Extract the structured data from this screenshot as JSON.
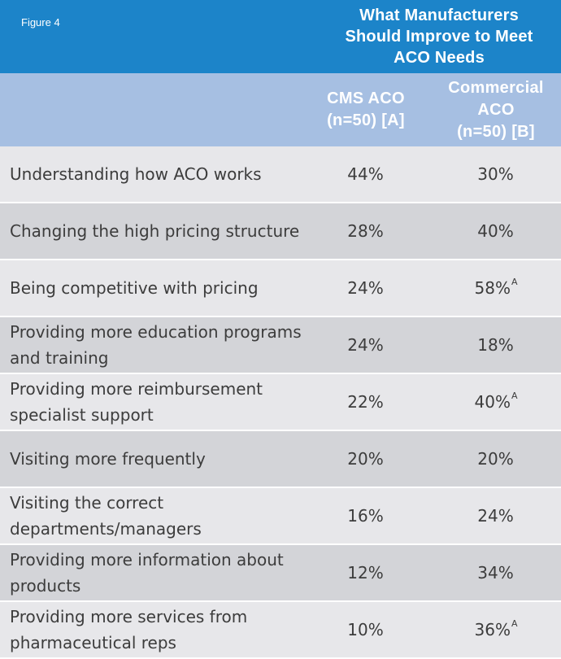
{
  "figure_label": "Figure 4",
  "colors": {
    "title_band": "#1c84c9",
    "header_band": "#a6bfe2",
    "row_light": "#e7e7ea",
    "row_dark": "#d3d4d8",
    "text": "#3c3c3c"
  },
  "chart_data": {
    "type": "table",
    "title": "What Manufacturers Should Improve to Meet ACO Needs",
    "title_lines": [
      "What Manufacturers",
      "Should Improve to Meet",
      "ACO Needs"
    ],
    "columns": [
      {
        "name": "CMS ACO (n=50) [A]",
        "lines": [
          "CMS ACO",
          "(n=50) [A]"
        ]
      },
      {
        "name": "Commercial ACO (n=50) [B]",
        "lines": [
          "Commercial",
          "ACO",
          "(n=50) [B]"
        ]
      }
    ],
    "rows": [
      {
        "label": "Understanding how ACO works",
        "cms": "44%",
        "cms_sup": "",
        "commercial": "30%",
        "commercial_sup": ""
      },
      {
        "label": "Changing the high pricing structure",
        "cms": "28%",
        "cms_sup": "",
        "commercial": "40%",
        "commercial_sup": ""
      },
      {
        "label": "Being competitive with pricing",
        "cms": "24%",
        "cms_sup": "",
        "commercial": "58%",
        "commercial_sup": "A"
      },
      {
        "label": "Providing more education programs and training",
        "cms": "24%",
        "cms_sup": "",
        "commercial": "18%",
        "commercial_sup": ""
      },
      {
        "label": "Providing more reimbursement specialist support",
        "cms": "22%",
        "cms_sup": "",
        "commercial": "40%",
        "commercial_sup": "A"
      },
      {
        "label": "Visiting more frequently",
        "cms": "20%",
        "cms_sup": "",
        "commercial": "20%",
        "commercial_sup": ""
      },
      {
        "label": "Visiting the correct departments/managers",
        "cms": "16%",
        "cms_sup": "",
        "commercial": "24%",
        "commercial_sup": ""
      },
      {
        "label": "Providing more information about products",
        "cms": "12%",
        "cms_sup": "",
        "commercial": "34%",
        "commercial_sup": ""
      },
      {
        "label": "Providing more services from pharmaceutical reps",
        "cms": "10%",
        "cms_sup": "",
        "commercial": "36%",
        "commercial_sup": "A"
      }
    ]
  }
}
